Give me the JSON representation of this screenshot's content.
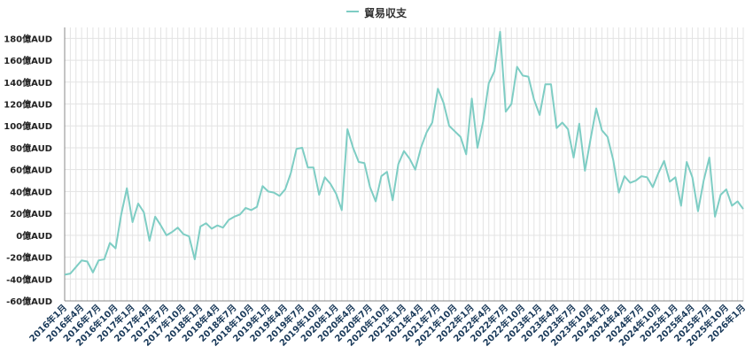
{
  "chart_data": {
    "type": "line",
    "title": "",
    "xlabel": "",
    "ylabel": "",
    "legend": {
      "placement": "top-center"
    },
    "grid": true,
    "ylim": [
      -60,
      190
    ],
    "y_ticks": [
      -60,
      -40,
      -20,
      0,
      20,
      40,
      60,
      80,
      100,
      120,
      140,
      160,
      180
    ],
    "y_tick_labels": [
      "-60億AUD",
      "-40億AUD",
      "-20億AUD",
      "0億AUD",
      "20億AUD",
      "40億AUD",
      "60億AUD",
      "80億AUD",
      "100億AUD",
      "120億AUD",
      "140億AUD",
      "160億AUD",
      "180億AUD"
    ],
    "x_tick_labels": [
      "2016年1月",
      "2016年4月",
      "2016年7月",
      "2016年10月",
      "2017年1月",
      "2017年4月",
      "2017年7月",
      "2017年10月",
      "2018年1月",
      "2018年4月",
      "2018年7月",
      "2018年10月",
      "2019年1月",
      "2019年4月",
      "2019年7月",
      "2019年10月",
      "2020年1月",
      "2020年4月",
      "2020年7月",
      "2020年10月",
      "2021年1月",
      "2021年4月",
      "2021年7月",
      "2021年10月",
      "2022年1月",
      "2022年4月",
      "2022年7月",
      "2022年10月",
      "2023年1月",
      "2023年4月",
      "2023年7月",
      "2023年10月",
      "2024年1月",
      "2024年4月",
      "2024年7月",
      "2024年10月",
      "2025年1月",
      "2025年4月",
      "2025年7月",
      "2025年10月",
      "2026年1月"
    ],
    "x_start": "2016年1月",
    "series": [
      {
        "name": "貿易収支",
        "color": "#7ecdc4",
        "values": [
          -36,
          -35,
          -29,
          -23,
          -24,
          -34,
          -23,
          -22,
          -7,
          -12,
          19,
          43,
          12,
          29,
          21,
          -5,
          17,
          9,
          0,
          3,
          7,
          1,
          -1,
          -22,
          8,
          11,
          6,
          9,
          7,
          14,
          17,
          19,
          25,
          23,
          26,
          45,
          40,
          39,
          36,
          42,
          57,
          79,
          80,
          62,
          62,
          37,
          53,
          47,
          38,
          23,
          97,
          80,
          67,
          66,
          44,
          31,
          54,
          58,
          32,
          65,
          77,
          70,
          60,
          80,
          94,
          103,
          134,
          121,
          100,
          95,
          90,
          74,
          125,
          80,
          104,
          139,
          150,
          186,
          113,
          120,
          154,
          146,
          145,
          124,
          110,
          138,
          138,
          98,
          103,
          97,
          71,
          102,
          59,
          88,
          116,
          96,
          90,
          69,
          39,
          54,
          48,
          50,
          54,
          53,
          44,
          57,
          68,
          49,
          53,
          27,
          67,
          53,
          22,
          50,
          71,
          17,
          37,
          42,
          27,
          31,
          24
        ]
      }
    ]
  }
}
